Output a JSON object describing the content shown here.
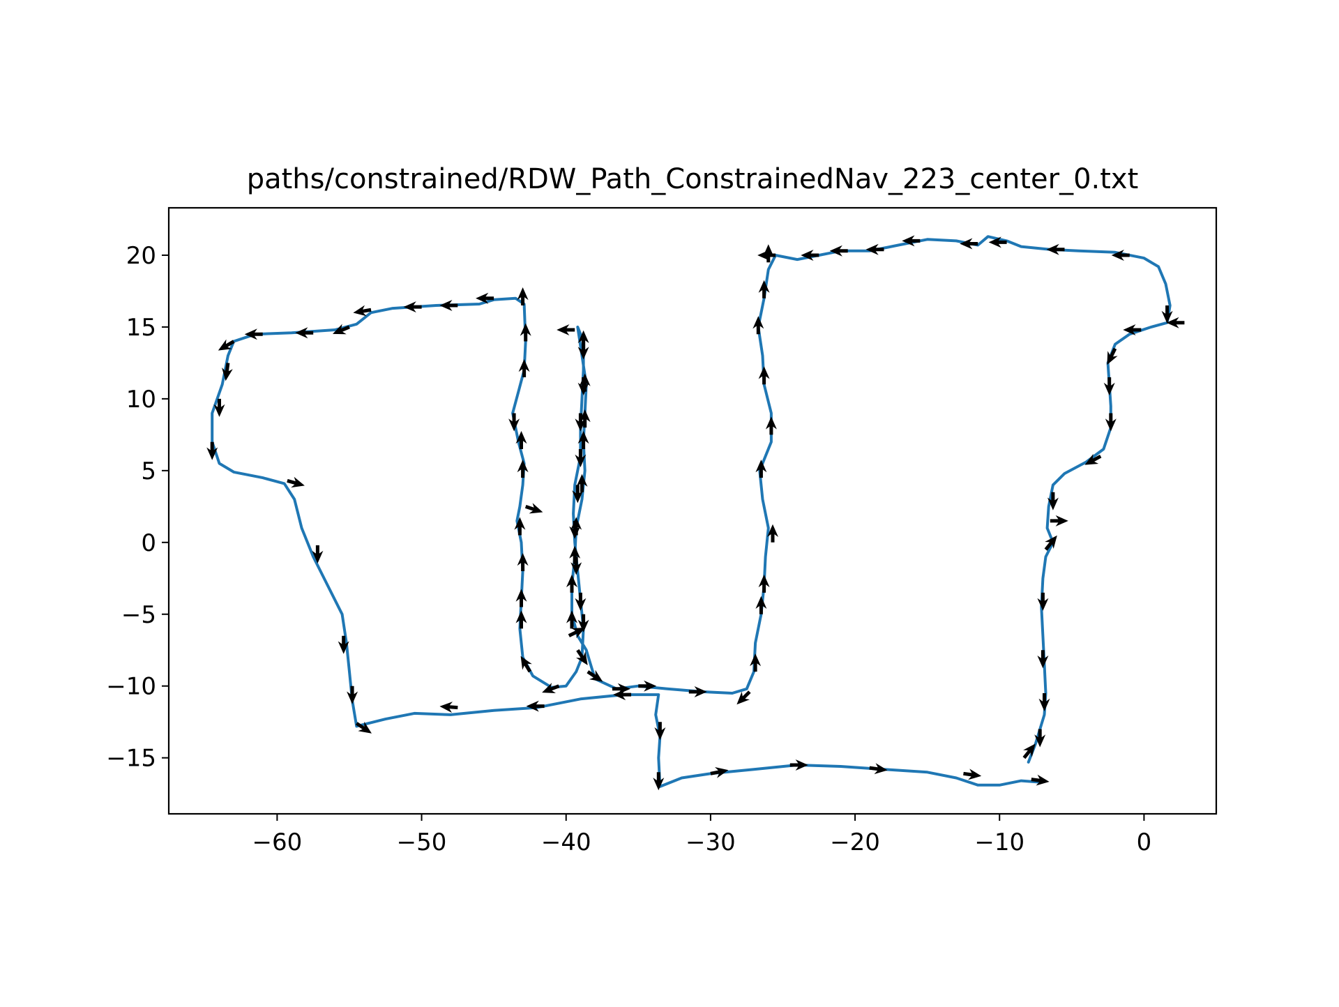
{
  "chart_data": {
    "type": "line",
    "title": "paths/constrained/RDW_Path_ConstrainedNav_223_center_0.txt",
    "xlabel": "",
    "ylabel": "",
    "xlim": [
      -67.5,
      5
    ],
    "ylim": [
      -18.9,
      23.3
    ],
    "xticks": [
      -60,
      -50,
      -40,
      -30,
      -20,
      -10,
      0
    ],
    "yticks": [
      20,
      15,
      10,
      5,
      0,
      -5,
      -10,
      -15
    ],
    "xtick_labels": [
      "−60",
      "−50",
      "−40",
      "−30",
      "−20",
      "−10",
      "0"
    ],
    "ytick_labels": [
      "20",
      "15",
      "10",
      "5",
      "0",
      "−5",
      "−10",
      "−15"
    ],
    "grid": false,
    "legend": "none",
    "line_color": "#1f77b4",
    "arrow_color": "#000000",
    "series": [
      {
        "values": [
          [
            -7.1,
            -16.7
          ],
          [
            -8.5,
            -16.6
          ],
          [
            -10.0,
            -16.9
          ],
          [
            -11.5,
            -16.9
          ],
          [
            -13.0,
            -16.4
          ],
          [
            -15.0,
            -16.0
          ],
          [
            -18.0,
            -15.8
          ],
          [
            -21.0,
            -15.6
          ],
          [
            -24.0,
            -15.5
          ],
          [
            -27.0,
            -15.8
          ],
          [
            -30.0,
            -16.1
          ],
          [
            -32.0,
            -16.4
          ],
          [
            -33.5,
            -17.0
          ],
          [
            -33.6,
            -15.0
          ],
          [
            -33.5,
            -13.5
          ],
          [
            -33.8,
            -12.0
          ],
          [
            -33.6,
            -10.6
          ],
          [
            -36.0,
            -10.6
          ],
          [
            -39.0,
            -10.9
          ],
          [
            -42.0,
            -11.5
          ],
          [
            -45.0,
            -11.7
          ],
          [
            -48.0,
            -12.0
          ],
          [
            -50.5,
            -11.9
          ],
          [
            -52.5,
            -12.3
          ],
          [
            -54.5,
            -12.8
          ],
          [
            -54.8,
            -11.0
          ],
          [
            -55.0,
            -9.0
          ],
          [
            -55.2,
            -7.0
          ],
          [
            -55.5,
            -5.0
          ],
          [
            -56.5,
            -3.0
          ],
          [
            -57.5,
            -1.0
          ],
          [
            -58.3,
            1.0
          ],
          [
            -58.8,
            3.0
          ],
          [
            -59.5,
            4.1
          ],
          [
            -61.0,
            4.5
          ],
          [
            -63.0,
            4.9
          ],
          [
            -64.0,
            5.5
          ],
          [
            -64.5,
            7.0
          ],
          [
            -64.5,
            9.0
          ],
          [
            -63.8,
            11.0
          ],
          [
            -63.4,
            13.0
          ],
          [
            -63.0,
            14.0
          ],
          [
            -61.5,
            14.5
          ],
          [
            -59.0,
            14.6
          ],
          [
            -56.0,
            14.8
          ],
          [
            -54.5,
            15.2
          ],
          [
            -53.5,
            16.0
          ],
          [
            -52.0,
            16.3
          ],
          [
            -49.0,
            16.5
          ],
          [
            -46.0,
            16.6
          ],
          [
            -45.0,
            16.9
          ],
          [
            -43.5,
            17.0
          ],
          [
            -42.9,
            16.6
          ],
          [
            -42.8,
            14.0
          ],
          [
            -42.9,
            12.0
          ],
          [
            -43.3,
            10.5
          ],
          [
            -43.7,
            9.0
          ],
          [
            -43.3,
            7.0
          ],
          [
            -42.9,
            5.5
          ],
          [
            -43.0,
            4.0
          ],
          [
            -43.2,
            2.5
          ],
          [
            -43.4,
            1.5
          ],
          [
            -43.1,
            0.0
          ],
          [
            -43.0,
            -2.0
          ],
          [
            -43.1,
            -4.0
          ],
          [
            -43.2,
            -6.0
          ],
          [
            -43.0,
            -8.0
          ],
          [
            -42.3,
            -9.3
          ],
          [
            -41.0,
            -10.1
          ],
          [
            -40.0,
            -10.0
          ],
          [
            -39.3,
            -9.0
          ],
          [
            -38.9,
            -8.0
          ],
          [
            -38.8,
            -6.0
          ],
          [
            -39.0,
            -4.0
          ],
          [
            -39.2,
            -2.0
          ],
          [
            -39.4,
            0.0
          ],
          [
            -39.5,
            2.0
          ],
          [
            -39.4,
            4.0
          ],
          [
            -39.0,
            6.0
          ],
          [
            -39.0,
            8.0
          ],
          [
            -38.9,
            10.0
          ],
          [
            -38.8,
            12.0
          ],
          [
            -38.8,
            14.0
          ],
          [
            -39.2,
            15.0
          ],
          [
            -38.9,
            13.0
          ],
          [
            -38.6,
            11.0
          ],
          [
            -38.7,
            9.0
          ],
          [
            -38.8,
            7.0
          ],
          [
            -38.7,
            5.0
          ],
          [
            -38.9,
            3.0
          ],
          [
            -39.3,
            1.0
          ],
          [
            -39.4,
            -1.0
          ],
          [
            -39.6,
            -3.0
          ],
          [
            -39.6,
            -5.0
          ],
          [
            -39.2,
            -6.5
          ],
          [
            -38.6,
            -7.5
          ],
          [
            -38.3,
            -8.5
          ],
          [
            -38.0,
            -9.5
          ],
          [
            -36.5,
            -10.2
          ],
          [
            -35.0,
            -10.0
          ],
          [
            -33.0,
            -10.2
          ],
          [
            -30.5,
            -10.4
          ],
          [
            -28.5,
            -10.5
          ],
          [
            -27.5,
            -10.2
          ],
          [
            -27.0,
            -9.0
          ],
          [
            -26.9,
            -7.0
          ],
          [
            -26.5,
            -5.0
          ],
          [
            -26.3,
            -3.0
          ],
          [
            -26.2,
            -1.0
          ],
          [
            -26.0,
            1.0
          ],
          [
            -26.4,
            3.0
          ],
          [
            -26.6,
            5.0
          ],
          [
            -25.8,
            7.0
          ],
          [
            -25.8,
            9.0
          ],
          [
            -26.3,
            11.0
          ],
          [
            -26.4,
            13.0
          ],
          [
            -26.7,
            15.0
          ],
          [
            -26.3,
            17.0
          ],
          [
            -26.0,
            19.0
          ],
          [
            -25.5,
            20.0
          ],
          [
            -24.0,
            19.7
          ],
          [
            -22.5,
            20.0
          ],
          [
            -21.0,
            20.3
          ],
          [
            -19.0,
            20.3
          ],
          [
            -17.0,
            20.7
          ],
          [
            -15.0,
            21.1
          ],
          [
            -13.0,
            21.0
          ],
          [
            -11.5,
            20.7
          ],
          [
            -10.8,
            21.3
          ],
          [
            -9.5,
            21.0
          ],
          [
            -8.5,
            20.6
          ],
          [
            -6.5,
            20.4
          ],
          [
            -4.5,
            20.3
          ],
          [
            -2.0,
            20.2
          ],
          [
            0.0,
            19.8
          ],
          [
            1.0,
            19.2
          ],
          [
            1.5,
            18.0
          ],
          [
            1.8,
            16.5
          ],
          [
            1.6,
            15.3
          ],
          [
            0.5,
            15.0
          ],
          [
            -1.0,
            14.5
          ],
          [
            -2.0,
            13.8
          ],
          [
            -2.5,
            12.5
          ],
          [
            -2.4,
            11.0
          ],
          [
            -2.3,
            9.5
          ],
          [
            -2.3,
            8.0
          ],
          [
            -2.8,
            6.5
          ],
          [
            -4.0,
            5.6
          ],
          [
            -5.5,
            4.8
          ],
          [
            -6.3,
            4.0
          ],
          [
            -6.6,
            2.5
          ],
          [
            -6.7,
            1.0
          ],
          [
            -6.3,
            0.0
          ],
          [
            -6.8,
            -1.0
          ],
          [
            -7.0,
            -2.5
          ],
          [
            -7.1,
            -4.5
          ],
          [
            -7.0,
            -6.5
          ],
          [
            -6.9,
            -8.5
          ],
          [
            -6.8,
            -10.5
          ],
          [
            -6.9,
            -12.0
          ],
          [
            -7.5,
            -14.0
          ],
          [
            -8.0,
            -15.3
          ]
        ]
      }
    ],
    "arrows": [
      [
        -7.8,
        -16.5,
        1.5,
        -0.2
      ],
      [
        -12.5,
        -16.1,
        1.5,
        -0.2
      ],
      [
        -19.0,
        -15.7,
        1.5,
        -0.2
      ],
      [
        -24.5,
        -15.5,
        1.5,
        0.0
      ],
      [
        -30.0,
        -16.1,
        1.5,
        0.3
      ],
      [
        -33.6,
        -16.0,
        0.0,
        -2.0
      ],
      [
        -33.5,
        -12.5,
        0.0,
        -1.5
      ],
      [
        -35.5,
        -10.6,
        -1.5,
        0.0
      ],
      [
        -41.5,
        -11.4,
        -1.5,
        0.0
      ],
      [
        -47.5,
        -11.5,
        -1.5,
        0.1
      ],
      [
        -54.5,
        -12.6,
        1.2,
        -0.8
      ],
      [
        -54.8,
        -10.0,
        0.0,
        -1.5
      ],
      [
        -55.4,
        -6.5,
        0.0,
        -1.5
      ],
      [
        -57.2,
        -0.2,
        0.0,
        -1.2
      ],
      [
        -59.3,
        4.3,
        1.4,
        -0.4
      ],
      [
        -64.5,
        7.0,
        0.0,
        -1.5
      ],
      [
        -64.0,
        10.0,
        0.0,
        -1.5
      ],
      [
        -63.4,
        12.5,
        -0.2,
        -1.5
      ],
      [
        -63.0,
        14.0,
        -1.2,
        -0.7
      ],
      [
        -61.0,
        14.5,
        -1.5,
        0.0
      ],
      [
        -57.5,
        14.6,
        -1.5,
        0.0
      ],
      [
        -55.0,
        15.0,
        -1.2,
        -0.5
      ],
      [
        -53.5,
        16.2,
        -1.2,
        -0.2
      ],
      [
        -50.0,
        16.4,
        -1.5,
        0.0
      ],
      [
        -47.5,
        16.5,
        -1.5,
        0.0
      ],
      [
        -45.0,
        17.0,
        -1.5,
        0.0
      ],
      [
        -43.0,
        16.5,
        0.0,
        1.5
      ],
      [
        -42.8,
        14.0,
        0.0,
        1.5
      ],
      [
        -42.9,
        11.5,
        0.0,
        1.5
      ],
      [
        -43.6,
        9.0,
        0.0,
        -1.5
      ],
      [
        -43.1,
        6.5,
        0.0,
        1.5
      ],
      [
        -43.0,
        4.5,
        0.0,
        1.5
      ],
      [
        -42.8,
        2.5,
        1.5,
        -0.5
      ],
      [
        -43.2,
        0.5,
        0.0,
        1.5
      ],
      [
        -43.0,
        -2.0,
        0.0,
        1.5
      ],
      [
        -43.1,
        -4.5,
        0.0,
        1.5
      ],
      [
        -43.1,
        -6.0,
        0.0,
        1.5
      ],
      [
        -42.5,
        -9.0,
        -0.6,
        1.0
      ],
      [
        -40.5,
        -10.0,
        -1.3,
        -0.5
      ],
      [
        -39.2,
        -7.5,
        0.8,
        -1.2
      ],
      [
        -38.8,
        -5.0,
        0.0,
        -1.5
      ],
      [
        -39.0,
        -3.5,
        0.0,
        -1.5
      ],
      [
        -39.3,
        -1.0,
        0.0,
        -1.5
      ],
      [
        -39.4,
        1.5,
        0.0,
        -1.5
      ],
      [
        -39.2,
        4.0,
        0.0,
        -1.5
      ],
      [
        -39.0,
        6.5,
        0.0,
        -1.5
      ],
      [
        -39.0,
        9.0,
        0.0,
        -1.5
      ],
      [
        -38.8,
        11.5,
        0.0,
        -1.5
      ],
      [
        -38.8,
        14.0,
        0.0,
        -1.5
      ],
      [
        -39.4,
        14.8,
        -1.5,
        0.0
      ],
      [
        -38.8,
        13.5,
        0.0,
        1.5
      ],
      [
        -38.7,
        10.5,
        0.0,
        1.5
      ],
      [
        -38.7,
        8.0,
        0.0,
        1.5
      ],
      [
        -38.8,
        6.5,
        0.0,
        1.5
      ],
      [
        -38.9,
        3.5,
        0.0,
        1.5
      ],
      [
        -39.3,
        0.5,
        0.0,
        1.5
      ],
      [
        -39.4,
        -1.5,
        0.0,
        1.5
      ],
      [
        -39.6,
        -3.5,
        0.0,
        1.5
      ],
      [
        -39.6,
        -6.0,
        0.0,
        1.5
      ],
      [
        -39.8,
        -6.5,
        1.2,
        0.6
      ],
      [
        -38.5,
        -9.0,
        1.2,
        -0.8
      ],
      [
        -36.8,
        -10.2,
        1.5,
        0.0
      ],
      [
        -35.0,
        -10.0,
        1.5,
        0.0
      ],
      [
        -31.5,
        -10.4,
        1.5,
        0.0
      ],
      [
        -27.3,
        -10.4,
        -1.0,
        -1.0
      ],
      [
        -26.9,
        -9.0,
        0.0,
        1.5
      ],
      [
        -26.5,
        -5.0,
        0.0,
        1.5
      ],
      [
        -26.3,
        -3.5,
        0.0,
        1.5
      ],
      [
        -25.7,
        0.0,
        0.0,
        1.5
      ],
      [
        -26.5,
        4.5,
        0.0,
        1.5
      ],
      [
        -25.8,
        7.5,
        0.0,
        1.5
      ],
      [
        -26.3,
        11.0,
        0.0,
        1.5
      ],
      [
        -26.7,
        14.5,
        0.0,
        1.5
      ],
      [
        -26.3,
        17.0,
        0.0,
        1.5
      ],
      [
        -26.0,
        19.5,
        0.0,
        1.5
      ],
      [
        -25.5,
        20.0,
        -1.5,
        0.0
      ],
      [
        -22.5,
        20.0,
        -1.5,
        0.0
      ],
      [
        -20.5,
        20.3,
        -1.5,
        0.0
      ],
      [
        -18.0,
        20.4,
        -1.5,
        0.0
      ],
      [
        -15.5,
        21.0,
        -1.5,
        0.0
      ],
      [
        -11.5,
        20.8,
        -1.5,
        0.0
      ],
      [
        -9.5,
        20.9,
        -1.5,
        0.0
      ],
      [
        -5.5,
        20.4,
        -1.5,
        0.0
      ],
      [
        -1.0,
        20.0,
        -1.5,
        0.0
      ],
      [
        1.6,
        16.5,
        0.0,
        -1.5
      ],
      [
        2.8,
        15.3,
        -1.5,
        0.0
      ],
      [
        -0.2,
        14.8,
        -1.5,
        0.0
      ],
      [
        -2.0,
        13.5,
        -0.5,
        -1.0
      ],
      [
        -2.4,
        11.5,
        0.0,
        -1.5
      ],
      [
        -2.3,
        9.0,
        0.0,
        -1.5
      ],
      [
        -3.0,
        6.0,
        -1.3,
        -0.7
      ],
      [
        -6.3,
        3.5,
        0.0,
        -1.5
      ],
      [
        -6.5,
        1.5,
        1.5,
        0.0
      ],
      [
        -6.8,
        -0.5,
        0.8,
        1.0
      ],
      [
        -7.0,
        -3.5,
        0.0,
        -1.5
      ],
      [
        -7.0,
        -7.5,
        0.0,
        -1.5
      ],
      [
        -6.9,
        -10.5,
        0.0,
        -1.5
      ],
      [
        -7.2,
        -13.0,
        0.0,
        -1.5
      ],
      [
        -8.3,
        -15.0,
        0.8,
        1.0
      ]
    ]
  }
}
